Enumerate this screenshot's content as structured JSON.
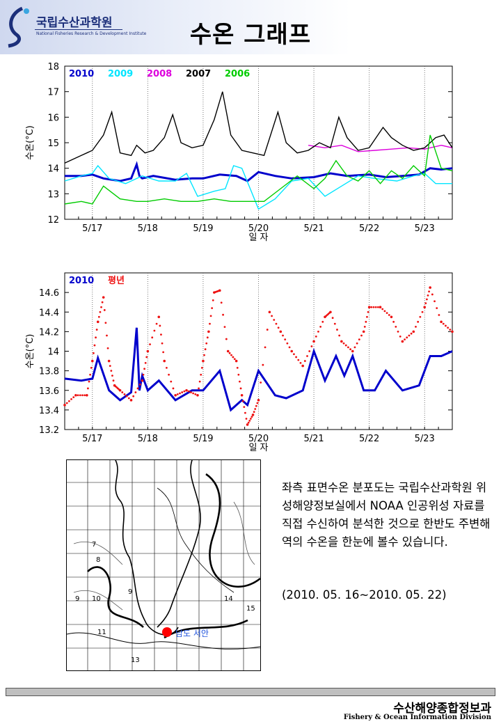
{
  "header": {
    "org_name": "국립수산과학원",
    "org_subtitle": "National Fisheries Research & Development Institute",
    "page_title": "수온 그래프"
  },
  "chart_data": [
    {
      "type": "line",
      "xlabel": "일 자",
      "ylabel": "수온(°C)",
      "ylim": [
        12,
        18
      ],
      "yticks": [
        12,
        13,
        14,
        15,
        16,
        17,
        18
      ],
      "xlim": [
        16.5,
        23.5
      ],
      "categories": [
        "5/17",
        "5/18",
        "5/19",
        "5/20",
        "5/21",
        "5/22",
        "5/23"
      ],
      "grid": "vertical dotted at midnight",
      "legend": "top-left",
      "series": [
        {
          "name": "2010",
          "color": "#0000cc",
          "x": [
            16.5,
            16.8,
            17.0,
            17.2,
            17.5,
            17.7,
            17.8,
            17.85,
            17.9,
            18.1,
            18.5,
            18.8,
            19.0,
            19.3,
            19.6,
            19.8,
            20.0,
            20.3,
            20.6,
            21.0,
            21.3,
            21.6,
            22.0,
            22.3,
            22.6,
            22.9,
            23.1,
            23.3,
            23.5
          ],
          "values": [
            13.7,
            13.7,
            13.75,
            13.6,
            13.5,
            13.6,
            14.15,
            13.7,
            13.6,
            13.7,
            13.55,
            13.6,
            13.6,
            13.75,
            13.7,
            13.5,
            13.85,
            13.7,
            13.6,
            13.65,
            13.8,
            13.7,
            13.75,
            13.65,
            13.7,
            13.75,
            14.0,
            13.95,
            14.0
          ]
        },
        {
          "name": "2009",
          "color": "#00e5ff",
          "x": [
            16.5,
            16.8,
            17.0,
            17.1,
            17.3,
            17.6,
            17.9,
            18.2,
            18.5,
            18.7,
            18.9,
            19.2,
            19.4,
            19.55,
            19.7,
            20.0,
            20.3,
            20.6,
            20.9,
            21.2,
            21.5,
            21.8,
            22.1,
            22.5,
            22.8,
            23.0,
            23.2,
            23.5
          ],
          "values": [
            13.5,
            13.7,
            13.8,
            14.1,
            13.6,
            13.4,
            13.7,
            13.5,
            13.5,
            13.8,
            12.9,
            13.1,
            13.2,
            14.1,
            14.0,
            12.4,
            12.8,
            13.5,
            13.6,
            12.9,
            13.3,
            13.7,
            13.6,
            13.5,
            13.7,
            13.8,
            13.4,
            13.4
          ]
        },
        {
          "name": "2008",
          "color": "#dd00dd",
          "x": [
            20.9,
            21.2,
            21.5,
            21.8,
            22.1,
            22.4,
            22.7,
            23.0,
            23.3,
            23.5
          ],
          "values": [
            14.9,
            14.8,
            14.9,
            14.65,
            14.7,
            14.75,
            14.8,
            14.75,
            14.9,
            14.8
          ]
        },
        {
          "name": "2007",
          "color": "#000000",
          "x": [
            16.5,
            16.8,
            17.0,
            17.2,
            17.35,
            17.5,
            17.7,
            17.8,
            17.95,
            18.1,
            18.3,
            18.45,
            18.6,
            18.8,
            19.0,
            19.2,
            19.35,
            19.5,
            19.7,
            19.9,
            20.1,
            20.35,
            20.5,
            20.7,
            20.9,
            21.1,
            21.3,
            21.45,
            21.6,
            21.8,
            22.0,
            22.25,
            22.4,
            22.6,
            22.8,
            23.0,
            23.2,
            23.35,
            23.5
          ],
          "values": [
            14.2,
            14.5,
            14.7,
            15.3,
            16.2,
            14.6,
            14.5,
            14.9,
            14.6,
            14.7,
            15.2,
            16.1,
            15.0,
            14.8,
            14.9,
            15.9,
            17.0,
            15.3,
            14.7,
            14.6,
            14.5,
            16.2,
            15.0,
            14.6,
            14.7,
            15.0,
            14.8,
            16.0,
            15.2,
            14.7,
            14.8,
            15.6,
            15.2,
            14.9,
            14.7,
            14.8,
            15.2,
            15.3,
            14.8
          ]
        },
        {
          "name": "2006",
          "color": "#00cc00",
          "x": [
            16.5,
            16.8,
            17.0,
            17.2,
            17.5,
            17.8,
            18.0,
            18.3,
            18.6,
            18.9,
            19.2,
            19.5,
            19.8,
            20.1,
            20.4,
            20.7,
            21.0,
            21.2,
            21.4,
            21.6,
            21.8,
            22.0,
            22.2,
            22.4,
            22.6,
            22.8,
            23.0,
            23.1,
            23.3,
            23.5
          ],
          "values": [
            12.6,
            12.7,
            12.6,
            13.3,
            12.8,
            12.7,
            12.7,
            12.8,
            12.7,
            12.7,
            12.8,
            12.7,
            12.7,
            12.7,
            13.2,
            13.7,
            13.2,
            13.6,
            14.3,
            13.7,
            13.5,
            13.9,
            13.4,
            13.9,
            13.6,
            14.1,
            13.7,
            15.3,
            14.0,
            13.9
          ]
        }
      ]
    },
    {
      "type": "line",
      "xlabel": "일 자",
      "ylabel": "수온(°C)",
      "ylim": [
        13.2,
        14.8
      ],
      "yticks": [
        13.2,
        13.4,
        13.6,
        13.8,
        14,
        14.2,
        14.4,
        14.6
      ],
      "xlim": [
        16.5,
        23.5
      ],
      "categories": [
        "5/17",
        "5/18",
        "5/19",
        "5/20",
        "5/21",
        "5/22",
        "5/23"
      ],
      "legend": "top-left",
      "series": [
        {
          "name": "2010",
          "color": "#0000cc",
          "x": [
            16.5,
            16.8,
            17.0,
            17.1,
            17.3,
            17.5,
            17.7,
            17.8,
            17.85,
            17.9,
            18.0,
            18.2,
            18.5,
            18.8,
            19.0,
            19.3,
            19.5,
            19.7,
            19.8,
            20.0,
            20.3,
            20.5,
            20.8,
            21.0,
            21.2,
            21.4,
            21.55,
            21.7,
            21.9,
            22.1,
            22.3,
            22.6,
            22.9,
            23.1,
            23.3,
            23.5
          ],
          "values": [
            13.72,
            13.7,
            13.72,
            13.93,
            13.6,
            13.5,
            13.58,
            14.24,
            13.6,
            13.75,
            13.6,
            13.7,
            13.5,
            13.6,
            13.6,
            13.8,
            13.4,
            13.5,
            13.45,
            13.8,
            13.55,
            13.52,
            13.6,
            14.0,
            13.7,
            13.95,
            13.75,
            13.95,
            13.6,
            13.6,
            13.8,
            13.6,
            13.65,
            13.95,
            13.95,
            14.0
          ]
        },
        {
          "name": "평년",
          "color": "#ee1111",
          "x": [
            16.5,
            16.7,
            16.9,
            17.0,
            17.1,
            17.2,
            17.3,
            17.4,
            17.5,
            17.7,
            17.9,
            18.0,
            18.2,
            18.3,
            18.5,
            18.7,
            18.9,
            19.0,
            19.1,
            19.2,
            19.3,
            19.45,
            19.6,
            19.7,
            19.8,
            19.9,
            20.0,
            20.2,
            20.4,
            20.6,
            20.8,
            21.0,
            21.2,
            21.3,
            21.5,
            21.7,
            21.9,
            22.0,
            22.2,
            22.4,
            22.6,
            22.8,
            23.0,
            23.1,
            23.3,
            23.5
          ],
          "values": [
            13.45,
            13.55,
            13.55,
            13.9,
            14.3,
            14.55,
            13.9,
            13.65,
            13.6,
            13.5,
            13.7,
            14.0,
            14.35,
            13.9,
            13.55,
            13.6,
            13.55,
            13.9,
            14.2,
            14.6,
            14.62,
            14.0,
            13.9,
            13.55,
            13.25,
            13.35,
            13.5,
            14.4,
            14.2,
            14.0,
            13.85,
            14.1,
            14.35,
            14.4,
            14.1,
            14.0,
            14.2,
            14.45,
            14.45,
            14.35,
            14.1,
            14.2,
            14.45,
            14.65,
            14.3,
            14.2
          ]
        }
      ]
    }
  ],
  "map": {
    "site_label": "남도 서안",
    "contour_labels": [
      "7",
      "8",
      "9",
      "10",
      "9",
      "11",
      "13",
      "14",
      "15"
    ]
  },
  "description": {
    "text": "좌측 표면수온 분포도는 국립수산과학원 위성해양정보실에서 NOAA 인공위성 자료를 직접 수신하여 분석한 것으로 한반도 주변해역의 수온을 한눈에 볼수 있습니다.",
    "period": "(2010. 05. 16~2010. 05. 22)"
  },
  "footer": {
    "division_ko": "수산해양종합정보과",
    "division_en": "Fishery & Ocean Information Division"
  }
}
